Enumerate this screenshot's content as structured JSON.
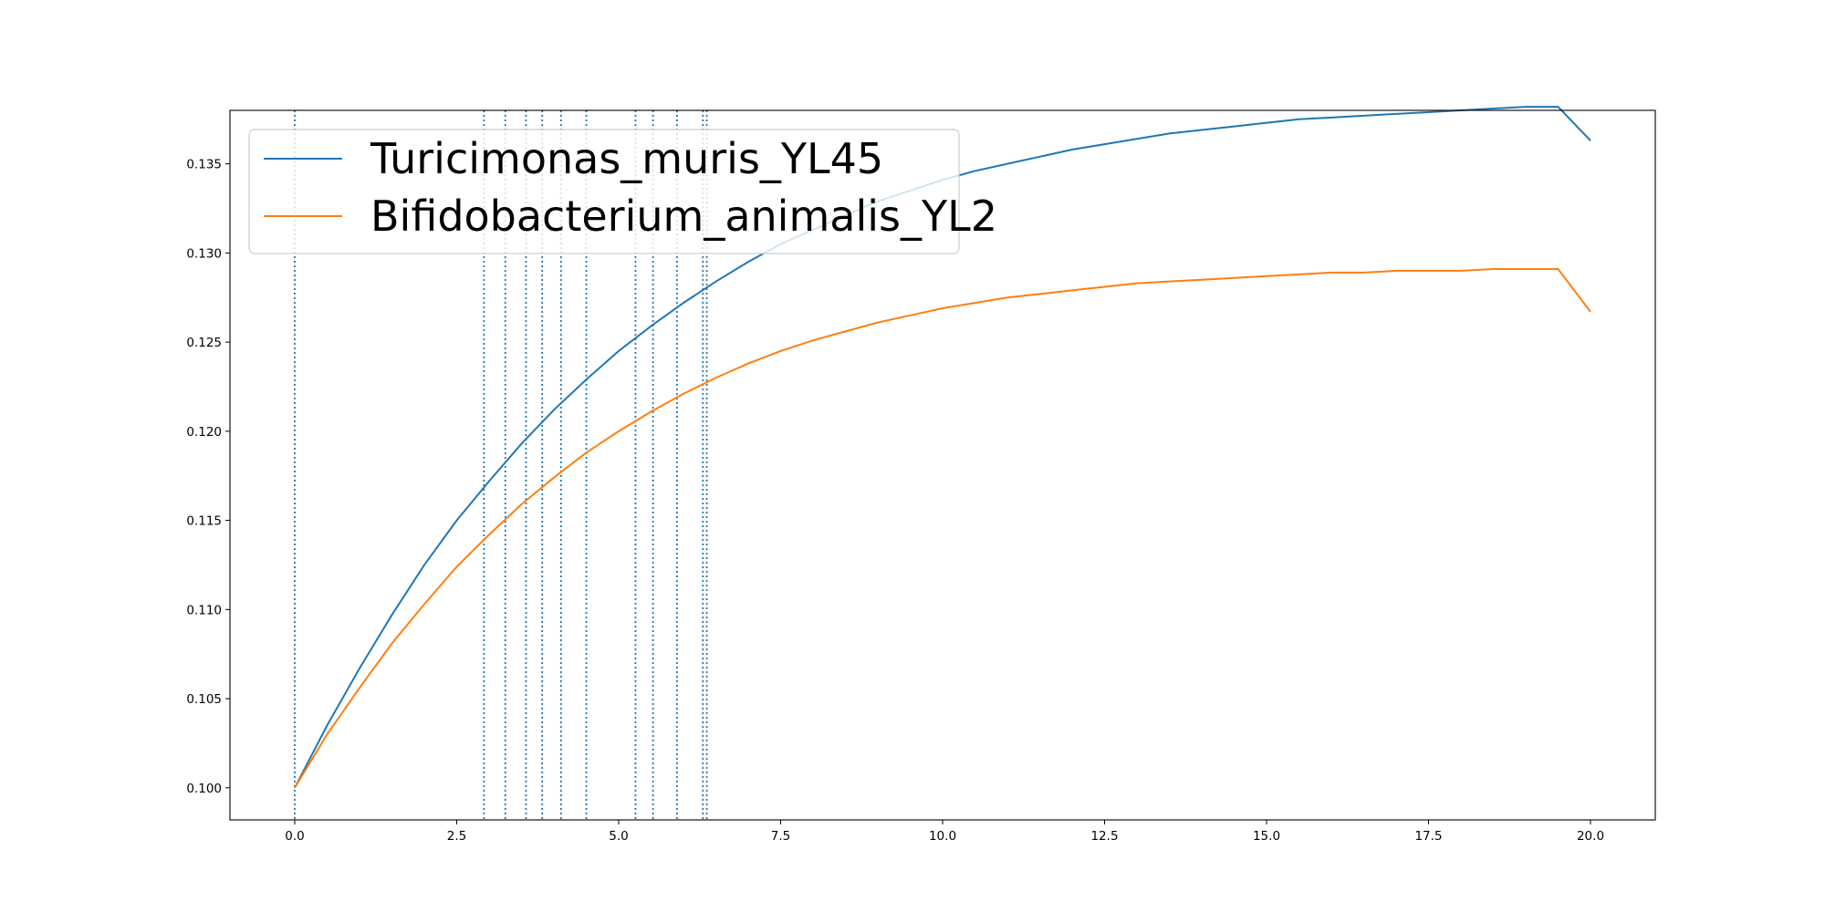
{
  "chart_data": {
    "type": "line",
    "title": "",
    "xlabel": "",
    "ylabel": "",
    "xlim": [
      -1.0,
      21.0
    ],
    "ylim": [
      0.0982,
      0.138
    ],
    "xticks": [
      0.0,
      2.5,
      5.0,
      7.5,
      10.0,
      12.5,
      15.0,
      17.5,
      20.0
    ],
    "xtick_labels": [
      "0.0",
      "2.5",
      "5.0",
      "7.5",
      "10.0",
      "12.5",
      "15.0",
      "17.5",
      "20.0"
    ],
    "yticks": [
      0.1,
      0.105,
      0.11,
      0.115,
      0.12,
      0.125,
      0.13,
      0.135
    ],
    "ytick_labels": [
      "0.100",
      "0.105",
      "0.110",
      "0.115",
      "0.120",
      "0.125",
      "0.130",
      "0.135"
    ],
    "grid": false,
    "legend_position": "top-left",
    "x": [
      0,
      0.5,
      1,
      1.5,
      2,
      2.5,
      3,
      3.5,
      4,
      4.5,
      5,
      5.5,
      6,
      6.5,
      7,
      7.5,
      8,
      8.5,
      9,
      9.5,
      10,
      10.5,
      11,
      11.5,
      12,
      12.5,
      13,
      13.5,
      14,
      14.5,
      15,
      15.5,
      16,
      16.5,
      17,
      17.5,
      18,
      18.5,
      19,
      19.5,
      20
    ],
    "series": [
      {
        "name": "Turicimonas_muris_YL45",
        "color": "#1f77b4",
        "values": [
          0.1,
          0.1035,
          0.1067,
          0.1097,
          0.1125,
          0.115,
          0.1172,
          0.1193,
          0.1212,
          0.1229,
          0.1245,
          0.1259,
          0.1272,
          0.1284,
          0.1295,
          0.1305,
          0.1313,
          0.1321,
          0.1329,
          0.1335,
          0.1341,
          0.1346,
          0.135,
          0.1354,
          0.1358,
          0.1361,
          0.1364,
          0.1367,
          0.1369,
          0.1371,
          0.1373,
          0.1375,
          0.1376,
          0.1377,
          0.1378,
          0.1379,
          0.138,
          0.1381,
          0.1382,
          0.1382,
          0.1363
        ]
      },
      {
        "name": "Bifidobacterium_animalis_YL2",
        "color": "#ff7f0e",
        "values": [
          0.1,
          0.103,
          0.1056,
          0.1081,
          0.1103,
          0.1124,
          0.1142,
          0.1159,
          0.1174,
          0.1188,
          0.12,
          0.1211,
          0.1221,
          0.123,
          0.1238,
          0.1245,
          0.1251,
          0.1256,
          0.1261,
          0.1265,
          0.1269,
          0.1272,
          0.1275,
          0.1277,
          0.1279,
          0.1281,
          0.1283,
          0.1284,
          0.1285,
          0.1286,
          0.1287,
          0.1288,
          0.1289,
          0.1289,
          0.129,
          0.129,
          0.129,
          0.1291,
          0.1291,
          0.1291,
          0.1267
        ]
      }
    ],
    "vlines": {
      "color": "#1f77b4",
      "style": "dotted",
      "x": [
        0.0,
        2.92,
        3.25,
        3.57,
        3.82,
        4.11,
        4.5,
        5.26,
        5.53,
        5.9,
        6.3,
        6.36
      ]
    }
  }
}
